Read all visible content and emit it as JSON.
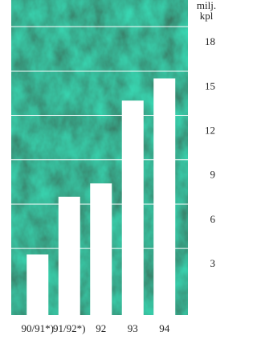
{
  "chart_data": {
    "type": "bar",
    "y_label_lines": [
      "milj.",
      "kpl"
    ],
    "categories": [
      "90/91*)",
      "91/92*)",
      "92",
      "93",
      "94"
    ],
    "values": [
      2.6,
      6.5,
      7.4,
      13.0,
      14.5
    ],
    "color": "#ffffff",
    "ylim": [
      -1.5,
      19.8
    ],
    "yticks": [
      3,
      6,
      9,
      12,
      15,
      18
    ],
    "grid": true,
    "y_axis_side": "right"
  }
}
